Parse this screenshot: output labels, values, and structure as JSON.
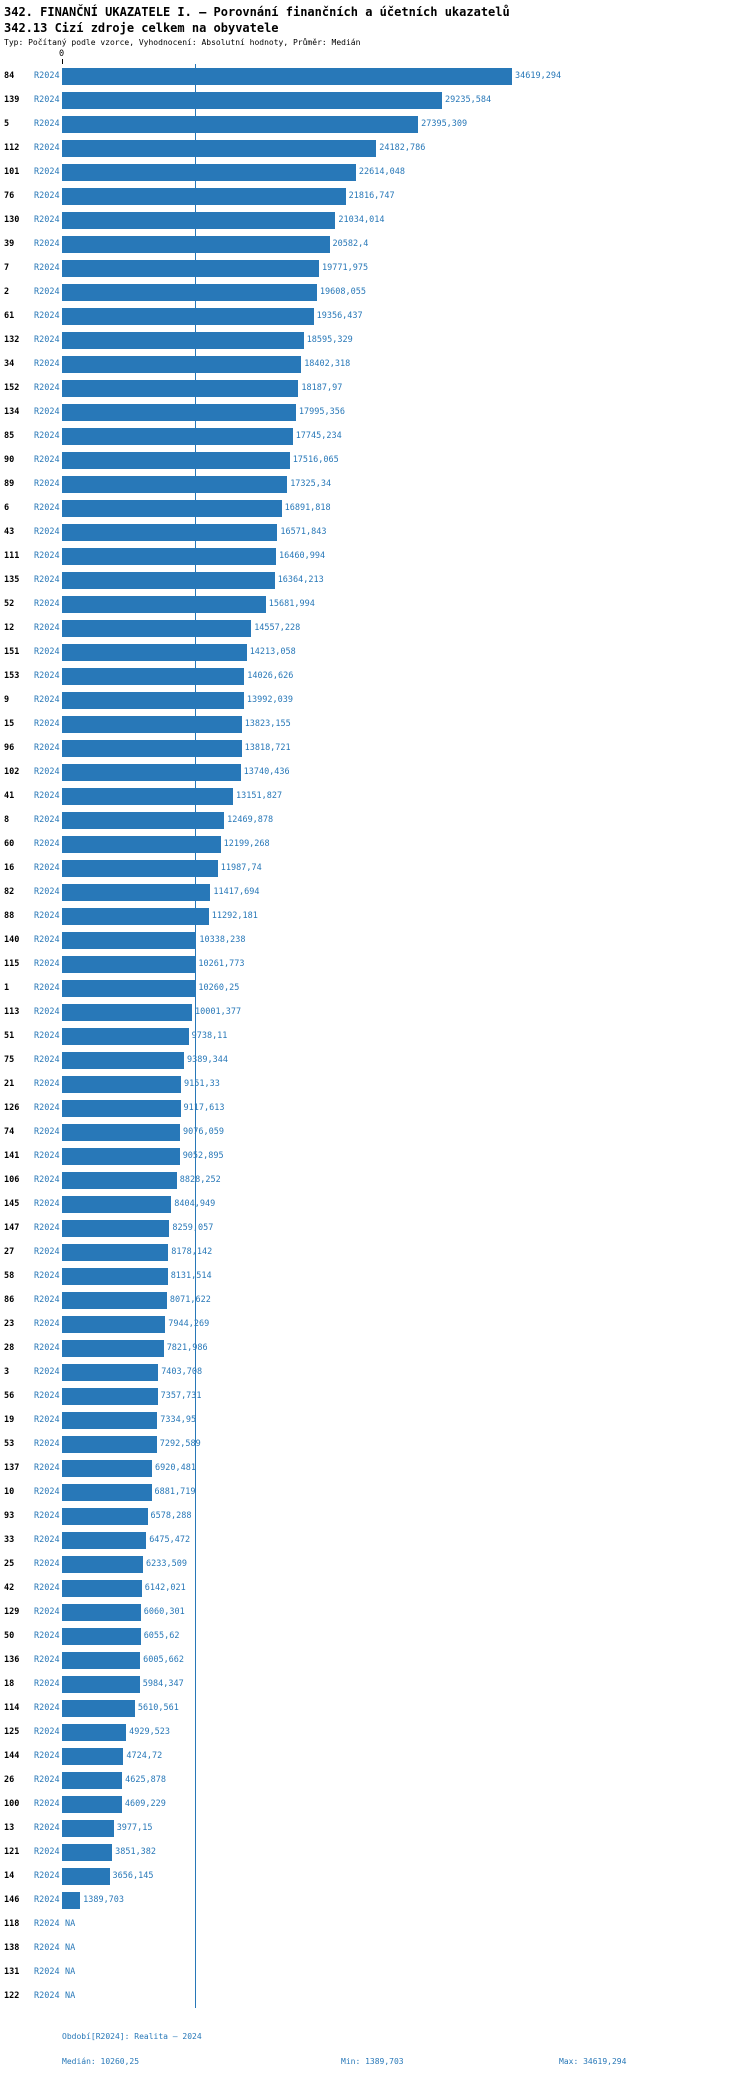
{
  "header": {
    "title": "342. FINANČNÍ UKAZATELE I. – Porovnání finančních a účetních ukazatelů",
    "subtitle": "342.13 Cizí zdroje celkem na obyvatele",
    "meta": "Typ: Počítaný podle vzorce, Vyhodnocení: Absolutní hodnoty, Průměr: Medián"
  },
  "axis": {
    "zero_label": "0"
  },
  "colors": {
    "bar": "#2878b8",
    "accent_text": "#2878b8"
  },
  "chart_data": {
    "type": "bar",
    "orientation": "horizontal",
    "title": "342.13 Cizí zdroje celkem na obyvatele",
    "xlabel": "",
    "ylabel": "",
    "xlim": [
      0,
      34619.294
    ],
    "grid": false,
    "period_label": "R2024",
    "value_max": 34619.294,
    "median_value": 10260.25,
    "min_value": 1389.703,
    "rows": [
      {
        "id": "84",
        "value": 34619.294,
        "label": "34619,294"
      },
      {
        "id": "139",
        "value": 29235.584,
        "label": "29235,584"
      },
      {
        "id": "5",
        "value": 27395.309,
        "label": "27395,309"
      },
      {
        "id": "112",
        "value": 24182.786,
        "label": "24182,786"
      },
      {
        "id": "101",
        "value": 22614.048,
        "label": "22614,048"
      },
      {
        "id": "76",
        "value": 21816.747,
        "label": "21816,747"
      },
      {
        "id": "130",
        "value": 21034.014,
        "label": "21034,014"
      },
      {
        "id": "39",
        "value": 20582.4,
        "label": "20582,4"
      },
      {
        "id": "7",
        "value": 19771.975,
        "label": "19771,975"
      },
      {
        "id": "2",
        "value": 19608.055,
        "label": "19608,055"
      },
      {
        "id": "61",
        "value": 19356.437,
        "label": "19356,437"
      },
      {
        "id": "132",
        "value": 18595.329,
        "label": "18595,329"
      },
      {
        "id": "34",
        "value": 18402.318,
        "label": "18402,318"
      },
      {
        "id": "152",
        "value": 18187.97,
        "label": "18187,97"
      },
      {
        "id": "134",
        "value": 17995.356,
        "label": "17995,356"
      },
      {
        "id": "85",
        "value": 17745.234,
        "label": "17745,234"
      },
      {
        "id": "90",
        "value": 17516.065,
        "label": "17516,065"
      },
      {
        "id": "89",
        "value": 17325.34,
        "label": "17325,34"
      },
      {
        "id": "6",
        "value": 16891.818,
        "label": "16891,818"
      },
      {
        "id": "43",
        "value": 16571.843,
        "label": "16571,843"
      },
      {
        "id": "111",
        "value": 16460.994,
        "label": "16460,994"
      },
      {
        "id": "135",
        "value": 16364.213,
        "label": "16364,213"
      },
      {
        "id": "52",
        "value": 15681.994,
        "label": "15681,994"
      },
      {
        "id": "12",
        "value": 14557.228,
        "label": "14557,228"
      },
      {
        "id": "151",
        "value": 14213.058,
        "label": "14213,058"
      },
      {
        "id": "153",
        "value": 14026.626,
        "label": "14026,626"
      },
      {
        "id": "9",
        "value": 13992.039,
        "label": "13992,039"
      },
      {
        "id": "15",
        "value": 13823.155,
        "label": "13823,155"
      },
      {
        "id": "96",
        "value": 13818.721,
        "label": "13818,721"
      },
      {
        "id": "102",
        "value": 13740.436,
        "label": "13740,436"
      },
      {
        "id": "41",
        "value": 13151.827,
        "label": "13151,827"
      },
      {
        "id": "8",
        "value": 12469.878,
        "label": "12469,878"
      },
      {
        "id": "60",
        "value": 12199.268,
        "label": "12199,268"
      },
      {
        "id": "16",
        "value": 11987.74,
        "label": "11987,74"
      },
      {
        "id": "82",
        "value": 11417.694,
        "label": "11417,694"
      },
      {
        "id": "88",
        "value": 11292.181,
        "label": "11292,181"
      },
      {
        "id": "140",
        "value": 10338.238,
        "label": "10338,238"
      },
      {
        "id": "115",
        "value": 10261.773,
        "label": "10261,773"
      },
      {
        "id": "1",
        "value": 10260.25,
        "label": "10260,25"
      },
      {
        "id": "113",
        "value": 10001.377,
        "label": "10001,377"
      },
      {
        "id": "51",
        "value": 9738.11,
        "label": "9738,11"
      },
      {
        "id": "75",
        "value": 9389.344,
        "label": "9389,344"
      },
      {
        "id": "21",
        "value": 9151.33,
        "label": "9151,33"
      },
      {
        "id": "126",
        "value": 9117.613,
        "label": "9117,613"
      },
      {
        "id": "74",
        "value": 9076.059,
        "label": "9076,059"
      },
      {
        "id": "141",
        "value": 9052.895,
        "label": "9052,895"
      },
      {
        "id": "106",
        "value": 8828.252,
        "label": "8828,252"
      },
      {
        "id": "145",
        "value": 8404.949,
        "label": "8404,949"
      },
      {
        "id": "147",
        "value": 8259.057,
        "label": "8259,057"
      },
      {
        "id": "27",
        "value": 8178.142,
        "label": "8178,142"
      },
      {
        "id": "58",
        "value": 8131.514,
        "label": "8131,514"
      },
      {
        "id": "86",
        "value": 8071.622,
        "label": "8071,622"
      },
      {
        "id": "23",
        "value": 7944.269,
        "label": "7944,269"
      },
      {
        "id": "28",
        "value": 7821.986,
        "label": "7821,986"
      },
      {
        "id": "3",
        "value": 7403.708,
        "label": "7403,708"
      },
      {
        "id": "56",
        "value": 7357.731,
        "label": "7357,731"
      },
      {
        "id": "19",
        "value": 7334.95,
        "label": "7334,95"
      },
      {
        "id": "53",
        "value": 7292.589,
        "label": "7292,589"
      },
      {
        "id": "137",
        "value": 6920.481,
        "label": "6920,481"
      },
      {
        "id": "10",
        "value": 6881.719,
        "label": "6881,719"
      },
      {
        "id": "93",
        "value": 6578.288,
        "label": "6578,288"
      },
      {
        "id": "33",
        "value": 6475.472,
        "label": "6475,472"
      },
      {
        "id": "25",
        "value": 6233.509,
        "label": "6233,509"
      },
      {
        "id": "42",
        "value": 6142.021,
        "label": "6142,021"
      },
      {
        "id": "129",
        "value": 6060.301,
        "label": "6060,301"
      },
      {
        "id": "50",
        "value": 6055.62,
        "label": "6055,62"
      },
      {
        "id": "136",
        "value": 6005.662,
        "label": "6005,662"
      },
      {
        "id": "18",
        "value": 5984.347,
        "label": "5984,347"
      },
      {
        "id": "114",
        "value": 5610.561,
        "label": "5610,561"
      },
      {
        "id": "125",
        "value": 4929.523,
        "label": "4929,523"
      },
      {
        "id": "144",
        "value": 4724.72,
        "label": "4724,72"
      },
      {
        "id": "26",
        "value": 4625.878,
        "label": "4625,878"
      },
      {
        "id": "100",
        "value": 4609.229,
        "label": "4609,229"
      },
      {
        "id": "13",
        "value": 3977.15,
        "label": "3977,15"
      },
      {
        "id": "121",
        "value": 3851.382,
        "label": "3851,382"
      },
      {
        "id": "14",
        "value": 3656.145,
        "label": "3656,145"
      },
      {
        "id": "146",
        "value": 1389.703,
        "label": "1389,703"
      },
      {
        "id": "118",
        "value": null,
        "label": "NA"
      },
      {
        "id": "138",
        "value": null,
        "label": "NA"
      },
      {
        "id": "131",
        "value": null,
        "label": "NA"
      },
      {
        "id": "122",
        "value": null,
        "label": "NA"
      }
    ]
  },
  "footer": {
    "period": "Období[R2024]: Realita – 2024",
    "median": "Medián: 10260,25",
    "min": "Min: 1389,703",
    "max": "Max: 34619,294"
  }
}
